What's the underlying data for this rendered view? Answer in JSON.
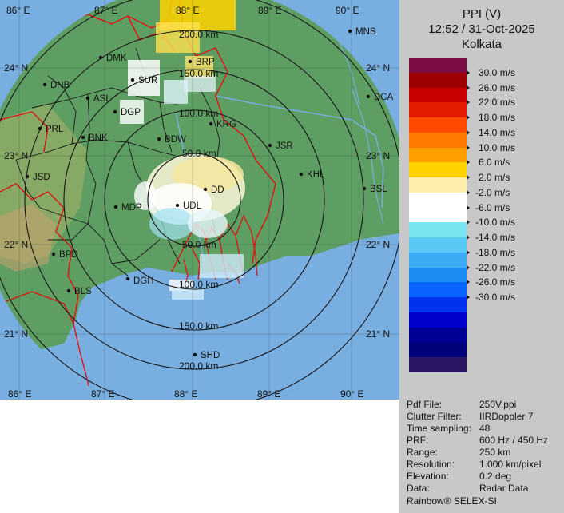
{
  "panel": {
    "product": "PPI (V)",
    "datetime": "12:52 / 31-Oct-2025",
    "station": "Kolkata",
    "legend_colors": [
      "#7a0e44",
      "#9c0000",
      "#c80000",
      "#e61c00",
      "#ff4a00",
      "#ff7800",
      "#ffa000",
      "#ffd200",
      "#ffeeaa",
      "#ffffff",
      "#ffffff",
      "#78e6f0",
      "#5ac8f5",
      "#3caaf5",
      "#1e8cf5",
      "#0a64ff",
      "#0032f0",
      "#0000cd",
      "#000096",
      "#000078",
      "#2a1464"
    ],
    "legend_ticks": [
      "30.0 m/s",
      "26.0 m/s",
      "22.0 m/s",
      "18.0 m/s",
      "14.0 m/s",
      "10.0 m/s",
      "6.0 m/s",
      "2.0 m/s",
      "-2.0 m/s",
      "-6.0 m/s",
      "-10.0 m/s",
      "-14.0 m/s",
      "-18.0 m/s",
      "-22.0 m/s",
      "-26.0 m/s",
      "-30.0 m/s"
    ],
    "metadata": [
      {
        "key": "Pdf File:",
        "value": "250V.ppi"
      },
      {
        "key": "Clutter Filter:",
        "value": "IIRDoppler 7"
      },
      {
        "key": "Time sampling:",
        "value": "48"
      },
      {
        "key": "PRF:",
        "value": "600 Hz / 450 Hz"
      },
      {
        "key": "Range:",
        "value": "250 km"
      },
      {
        "key": "Resolution:",
        "value": "1.000 km/pixel"
      },
      {
        "key": "Elevation:",
        "value": "0.2 deg"
      },
      {
        "key": "Data:",
        "value": "Radar Data"
      }
    ],
    "footer": "Rainbow® SELEX-SI"
  },
  "map": {
    "colors": {
      "land": "#5f9e63",
      "sea": "#78aee0",
      "boundary": "#e01010",
      "district": "#151515",
      "rings": "#151515"
    },
    "lon_labels": [
      "86° E",
      "87° E",
      "88° E",
      "89° E",
      "90° E"
    ],
    "lat_labels": [
      "24° N",
      "23° N",
      "22° N",
      "21° N"
    ],
    "range_labels": [
      "50.0 km",
      "100.0 km",
      "150.0 km",
      "200.0 km"
    ],
    "stations": [
      {
        "id": "MNS"
      },
      {
        "id": "DMK"
      },
      {
        "id": "BRP"
      },
      {
        "id": "SUR"
      },
      {
        "id": "DNB"
      },
      {
        "id": "ASL"
      },
      {
        "id": "DCA"
      },
      {
        "id": "DGP"
      },
      {
        "id": "PRL"
      },
      {
        "id": "KRG"
      },
      {
        "id": "BNK"
      },
      {
        "id": "BDW"
      },
      {
        "id": "JSR"
      },
      {
        "id": "JSD"
      },
      {
        "id": "KHL"
      },
      {
        "id": "DD"
      },
      {
        "id": "BSL"
      },
      {
        "id": "UDL"
      },
      {
        "id": "MDP"
      },
      {
        "id": "BPD"
      },
      {
        "id": "DGH"
      },
      {
        "id": "BLS"
      },
      {
        "id": "SHD"
      }
    ]
  }
}
